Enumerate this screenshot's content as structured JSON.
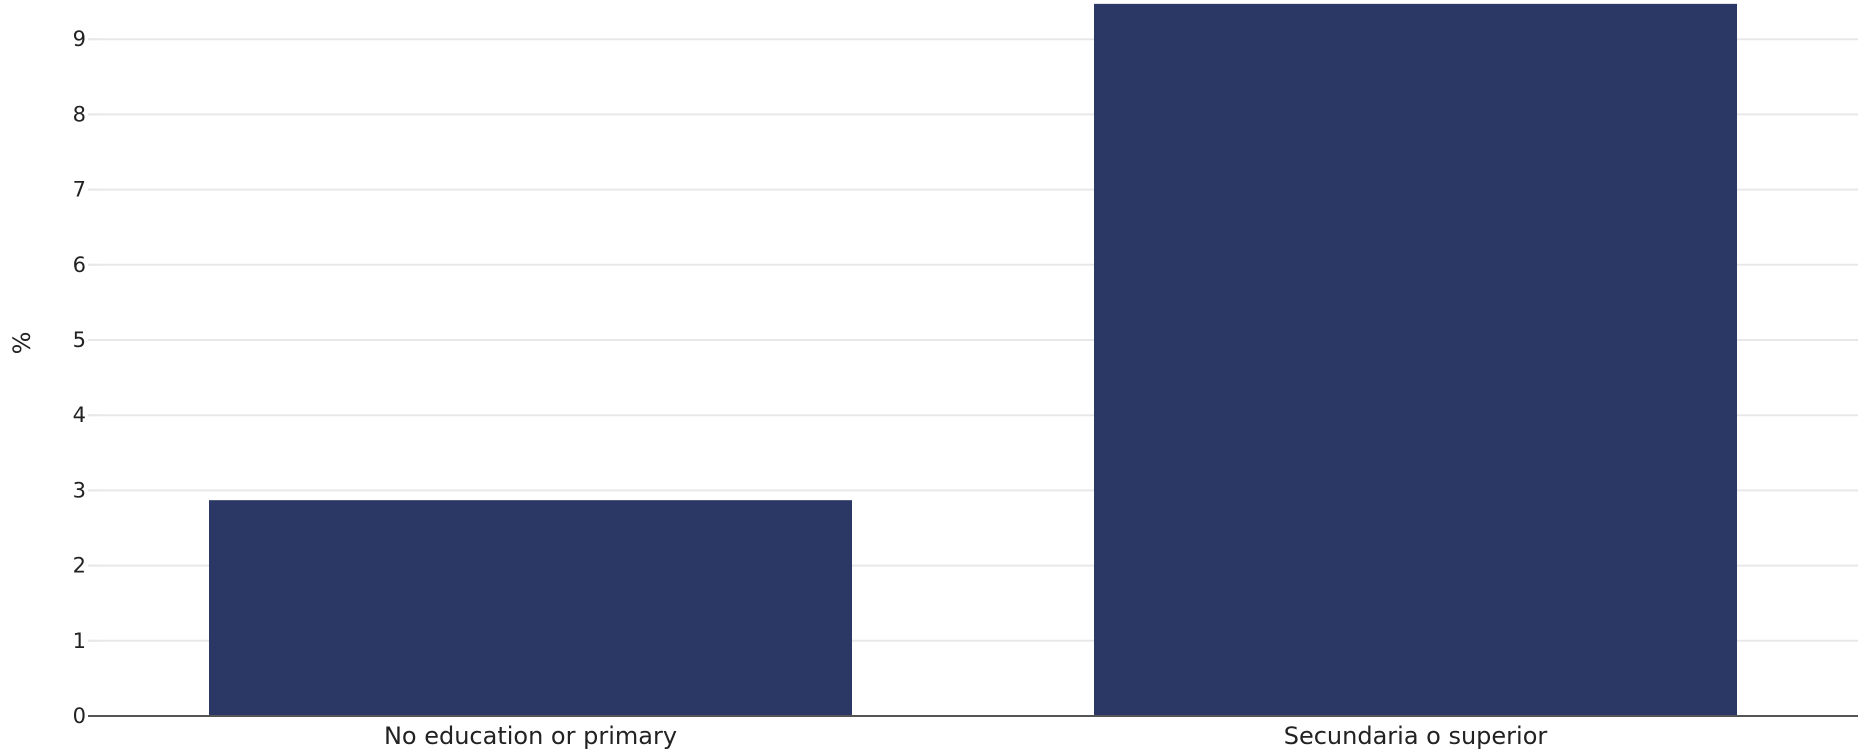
{
  "chart_data": {
    "type": "bar",
    "categories": [
      "No education or primary",
      "Secundaria o superior"
    ],
    "values": [
      2.87,
      9.47
    ],
    "title": "",
    "xlabel": "",
    "ylabel": "%",
    "ylim": [
      0,
      9.55
    ],
    "yticks": [
      "0",
      "1",
      "2",
      "3",
      "4",
      "5",
      "6",
      "7",
      "8",
      "9"
    ],
    "grid": true,
    "legend": "none",
    "colors": {
      "bar": "#2b3764",
      "grid": "#e8e8e8",
      "baseline": "#555555",
      "text": "#222222"
    }
  }
}
